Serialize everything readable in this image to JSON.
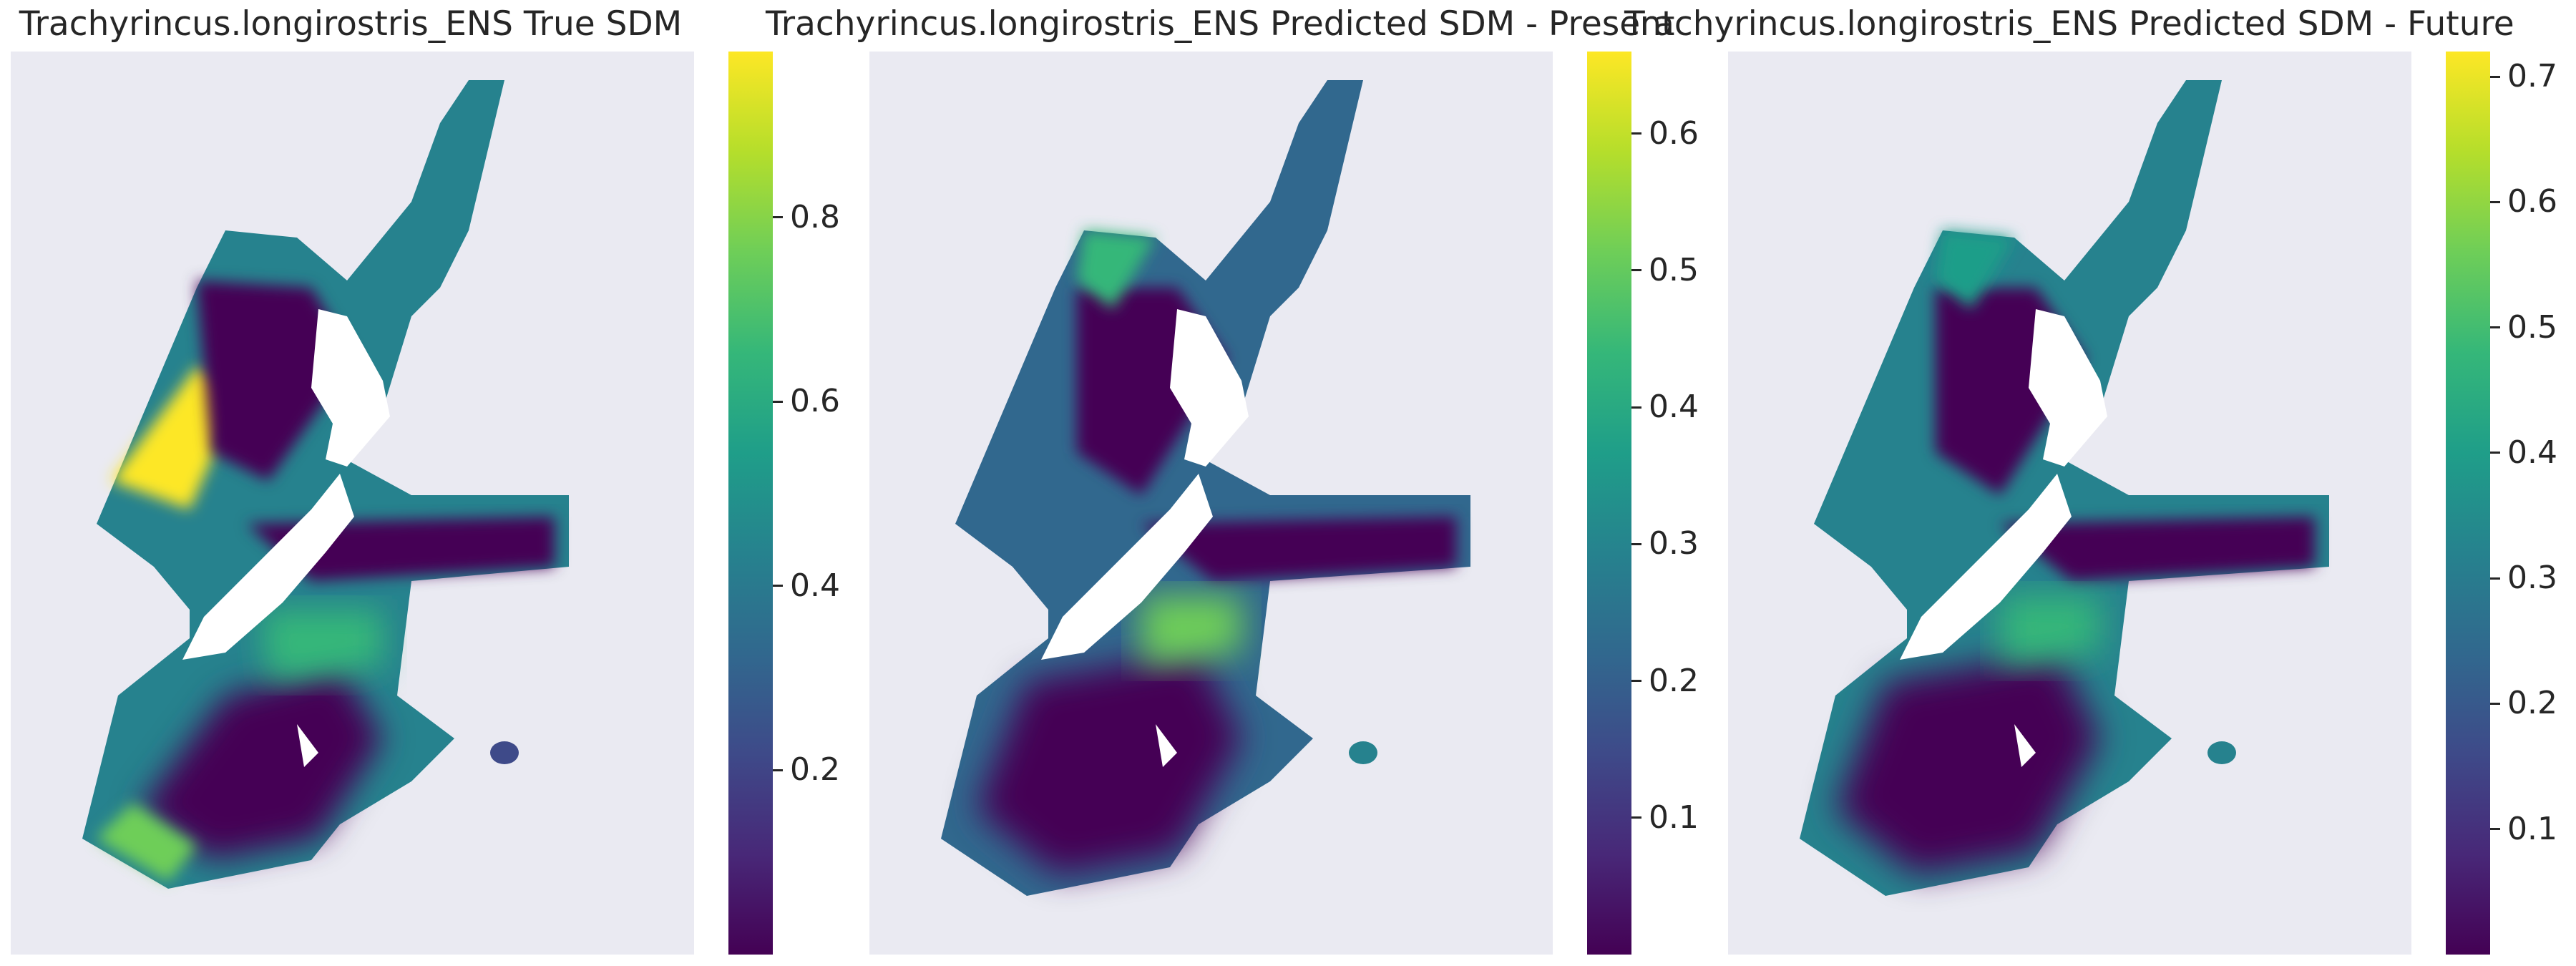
{
  "chart_data": [
    {
      "type": "heatmap",
      "title": "Trachyrincus.longirostris_ENS True SDM",
      "colormap": "viridis",
      "colorbar": {
        "min": 0.0,
        "max": 0.98,
        "ticks": [
          0.2,
          0.4,
          0.6,
          0.8
        ],
        "tick_labels": [
          "0.2",
          "0.4",
          "0.6",
          "0.8"
        ]
      },
      "grid": false,
      "xlabel": "",
      "ylabel": ""
    },
    {
      "type": "heatmap",
      "title": "Trachyrincus.longirostris_ENS Predicted SDM - Present",
      "colormap": "viridis",
      "colorbar": {
        "min": 0.0,
        "max": 0.66,
        "ticks": [
          0.1,
          0.2,
          0.3,
          0.4,
          0.5,
          0.6
        ],
        "tick_labels": [
          "0.1",
          "0.2",
          "0.3",
          "0.4",
          "0.5",
          "0.6"
        ]
      },
      "grid": false,
      "xlabel": "",
      "ylabel": ""
    },
    {
      "type": "heatmap",
      "title": "Trachyrincus.longirostris_ENS Predicted SDM - Future",
      "colormap": "viridis",
      "colorbar": {
        "min": 0.0,
        "max": 0.72,
        "ticks": [
          0.1,
          0.2,
          0.3,
          0.4,
          0.5,
          0.6,
          0.7
        ],
        "tick_labels": [
          "0.1",
          "0.2",
          "0.3",
          "0.4",
          "0.5",
          "0.6",
          "0.7"
        ]
      },
      "grid": false,
      "xlabel": "",
      "ylabel": ""
    }
  ],
  "colors": {
    "axes_background": "#eaeaf2",
    "land": "#ffffff",
    "text": "#262626",
    "viridis": [
      "#440154",
      "#482878",
      "#3e4a89",
      "#31688e",
      "#26828e",
      "#1f9e89",
      "#35b779",
      "#6ece58",
      "#b5de2b",
      "#fde725"
    ]
  }
}
